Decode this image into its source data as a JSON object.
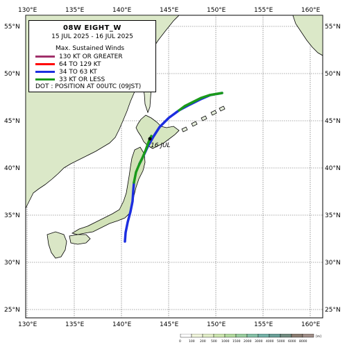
{
  "storm": {
    "title": "08W  EIGHT_W",
    "dates": "15 JUL 2025 - 16 JUL 2025",
    "date_label": "16 JUL"
  },
  "legend": {
    "heading": "Max. Sustained Winds",
    "items": [
      {
        "label": "130 KT OR GREATER",
        "color": "#a0306a"
      },
      {
        "label": "64 TO 129 KT",
        "color": "#ff0000"
      },
      {
        "label": "34 TO 63 KT",
        "color": "#1c2ee0"
      },
      {
        "label": "33 KT OR LESS",
        "color": "#1a9a1a"
      }
    ],
    "dot_note": "DOT : POSITION AT 00UTC (09JST)"
  },
  "axes": {
    "lon_labels": [
      "130°E",
      "135°E",
      "140°E",
      "145°E",
      "150°E",
      "155°E",
      "160°E"
    ],
    "lat_labels": [
      "55°N",
      "50°N",
      "45°N",
      "40°N",
      "35°N",
      "30°N",
      "25°N"
    ]
  },
  "elevation_scale": {
    "unit": "[m]",
    "ticks": [
      "0",
      "100",
      "200",
      "500",
      "1000",
      "1500",
      "2000",
      "3000",
      "4000",
      "5000",
      "6000",
      "8000"
    ]
  },
  "colors": {
    "sea": "#ffffff",
    "land": "#f4f4ee",
    "grid": "#444444"
  }
}
